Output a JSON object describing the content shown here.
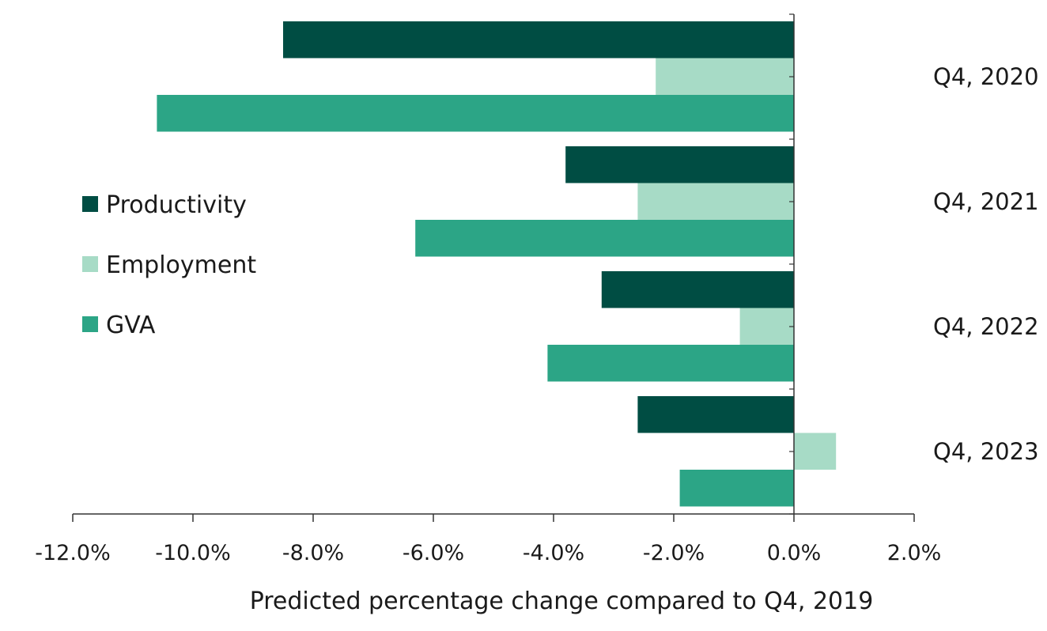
{
  "chart_data": {
    "type": "bar",
    "orientation": "horizontal",
    "categories": [
      "Q4, 2020",
      "Q4, 2021",
      "Q4, 2022",
      "Q4, 2023"
    ],
    "series": [
      {
        "name": "Productivity",
        "color": "#004d43",
        "values": [
          -8.5,
          -3.8,
          -3.2,
          -2.6
        ]
      },
      {
        "name": "Employment",
        "color": "#a7dbc6",
        "values": [
          -2.3,
          -2.6,
          -0.9,
          0.7
        ]
      },
      {
        "name": "GVA",
        "color": "#2ca586",
        "values": [
          -10.6,
          -6.3,
          -4.1,
          -1.9
        ]
      }
    ],
    "xlabel": "Predicted percentage change compared to Q4, 2019",
    "xlim": [
      -12,
      2
    ],
    "xticks": [
      -12,
      -10,
      -8,
      -6,
      -4,
      -2,
      0,
      2
    ],
    "xtick_labels": [
      "-12.0%",
      "-10.0%",
      "-8.0%",
      "-6.0%",
      "-4.0%",
      "-2.0%",
      "0.0%",
      "2.0%"
    ],
    "category_labels_side": "right",
    "legend_position": "left",
    "grid": false
  }
}
